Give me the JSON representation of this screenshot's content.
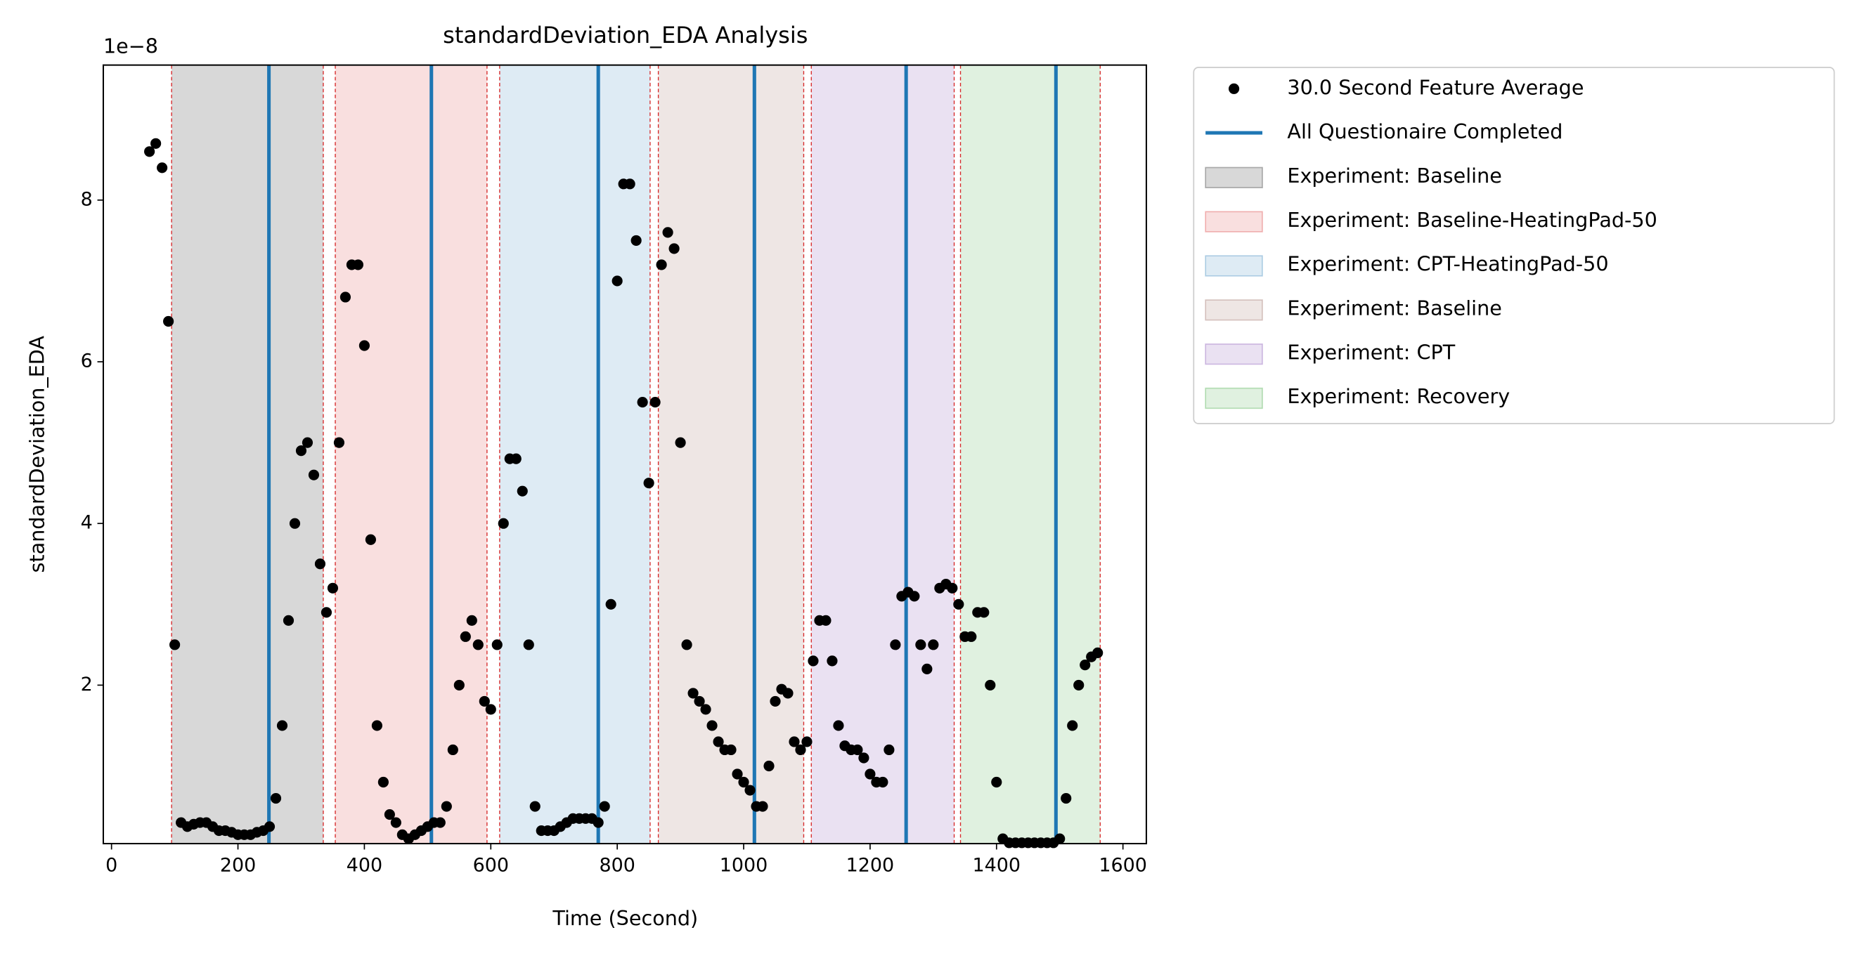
{
  "chart_data": {
    "type": "scatter",
    "title": "standardDeviation_EDA Analysis",
    "xlabel": "Time (Second)",
    "ylabel": "standardDeviation_EDA",
    "y_offset_label": "1e−8",
    "xlim": [
      -13,
      1637
    ],
    "ylim": [
      0.04,
      9.67
    ],
    "xticks": [
      0,
      200,
      400,
      600,
      800,
      1000,
      1200,
      1400,
      1600
    ],
    "yticks": [
      2,
      4,
      6,
      8
    ],
    "legend": "outside upper right",
    "series": [
      {
        "name": "30.0 Second Feature Average",
        "color": "#000000",
        "x": [
          60,
          70,
          80,
          90,
          100,
          110,
          120,
          130,
          140,
          150,
          160,
          170,
          180,
          190,
          200,
          210,
          220,
          230,
          240,
          250,
          260,
          270,
          280,
          290,
          300,
          310,
          320,
          330,
          340,
          350,
          360,
          370,
          380,
          390,
          400,
          410,
          420,
          430,
          440,
          450,
          460,
          470,
          480,
          490,
          500,
          510,
          520,
          530,
          540,
          550,
          560,
          570,
          580,
          590,
          600,
          610,
          620,
          630,
          640,
          650,
          660,
          670,
          680,
          690,
          700,
          710,
          720,
          730,
          740,
          750,
          760,
          770,
          780,
          790,
          800,
          810,
          820,
          830,
          840,
          850,
          860,
          870,
          880,
          890,
          900,
          910,
          920,
          930,
          940,
          950,
          960,
          970,
          980,
          990,
          1000,
          1010,
          1020,
          1030,
          1040,
          1050,
          1060,
          1070,
          1080,
          1090,
          1100,
          1110,
          1120,
          1130,
          1140,
          1150,
          1160,
          1170,
          1180,
          1190,
          1200,
          1210,
          1220,
          1230,
          1240,
          1250,
          1260,
          1270,
          1280,
          1290,
          1300,
          1310,
          1320,
          1330,
          1340,
          1350,
          1360,
          1370,
          1380,
          1390,
          1400,
          1410,
          1420,
          1430,
          1440,
          1450,
          1460,
          1470,
          1480,
          1490,
          1500,
          1510,
          1520,
          1530,
          1540,
          1550,
          1560
        ],
        "values": [
          8.6,
          8.7,
          8.4,
          6.5,
          2.5,
          0.3,
          0.25,
          0.28,
          0.3,
          0.3,
          0.25,
          0.2,
          0.2,
          0.18,
          0.15,
          0.15,
          0.15,
          0.18,
          0.2,
          0.25,
          0.6,
          1.5,
          2.8,
          4.0,
          4.9,
          5.0,
          4.6,
          3.5,
          2.9,
          3.2,
          5.0,
          6.8,
          7.2,
          7.2,
          6.2,
          3.8,
          1.5,
          0.8,
          0.4,
          0.3,
          0.15,
          0.1,
          0.15,
          0.2,
          0.25,
          0.3,
          0.3,
          0.5,
          1.2,
          2.0,
          2.6,
          2.8,
          2.5,
          1.8,
          1.7,
          2.5,
          4.0,
          4.8,
          4.8,
          4.4,
          2.5,
          0.5,
          0.2,
          0.2,
          0.2,
          0.25,
          0.3,
          0.35,
          0.35,
          0.35,
          0.35,
          0.3,
          0.5,
          3.0,
          7.0,
          8.2,
          8.2,
          7.5,
          5.5,
          4.5,
          5.5,
          7.2,
          7.6,
          7.4,
          5.0,
          2.5,
          1.9,
          1.8,
          1.7,
          1.5,
          1.3,
          1.2,
          1.2,
          0.9,
          0.8,
          0.7,
          0.5,
          0.5,
          1.0,
          1.8,
          1.95,
          1.9,
          1.3,
          1.2,
          1.3,
          2.3,
          2.8,
          2.8,
          2.3,
          1.5,
          1.25,
          1.2,
          1.2,
          1.1,
          0.9,
          0.8,
          0.8,
          1.2,
          2.5,
          3.1,
          3.15,
          3.1,
          2.5,
          2.2,
          2.5,
          3.2,
          3.25,
          3.2,
          3.0,
          2.6,
          2.6,
          2.9,
          2.9,
          2.0,
          0.8,
          0.1,
          0.05,
          0.05,
          0.05,
          0.05,
          0.05,
          0.05,
          0.05,
          0.05,
          0.1,
          0.6,
          1.5,
          2.0,
          2.25,
          2.35,
          2.4
        ]
      }
    ],
    "vlines": {
      "name": "All Questionaire Completed",
      "color": "#1f77b4",
      "x": [
        249,
        506,
        770,
        1017,
        1257,
        1494
      ]
    },
    "spans": [
      {
        "name": "Experiment: Baseline",
        "color": "#7f7f7f",
        "alpha": 0.3,
        "start": 95,
        "end": 335
      },
      {
        "name": "Experiment: Baseline-HeatingPad-50",
        "color": "#d62728",
        "alpha": 0.15,
        "start": 354,
        "end": 594
      },
      {
        "name": "Experiment: CPT-HeatingPad-50",
        "color": "#1f77b4",
        "alpha": 0.15,
        "start": 614,
        "end": 852
      },
      {
        "name": "Experiment: Baseline",
        "color": "#8c564b",
        "alpha": 0.15,
        "start": 865,
        "end": 1095
      },
      {
        "name": "Experiment: CPT",
        "color": "#9467bd",
        "alpha": 0.2,
        "start": 1107,
        "end": 1333
      },
      {
        "name": "Experiment: Recovery",
        "color": "#2ca02c",
        "alpha": 0.15,
        "start": 1343,
        "end": 1564
      }
    ]
  }
}
